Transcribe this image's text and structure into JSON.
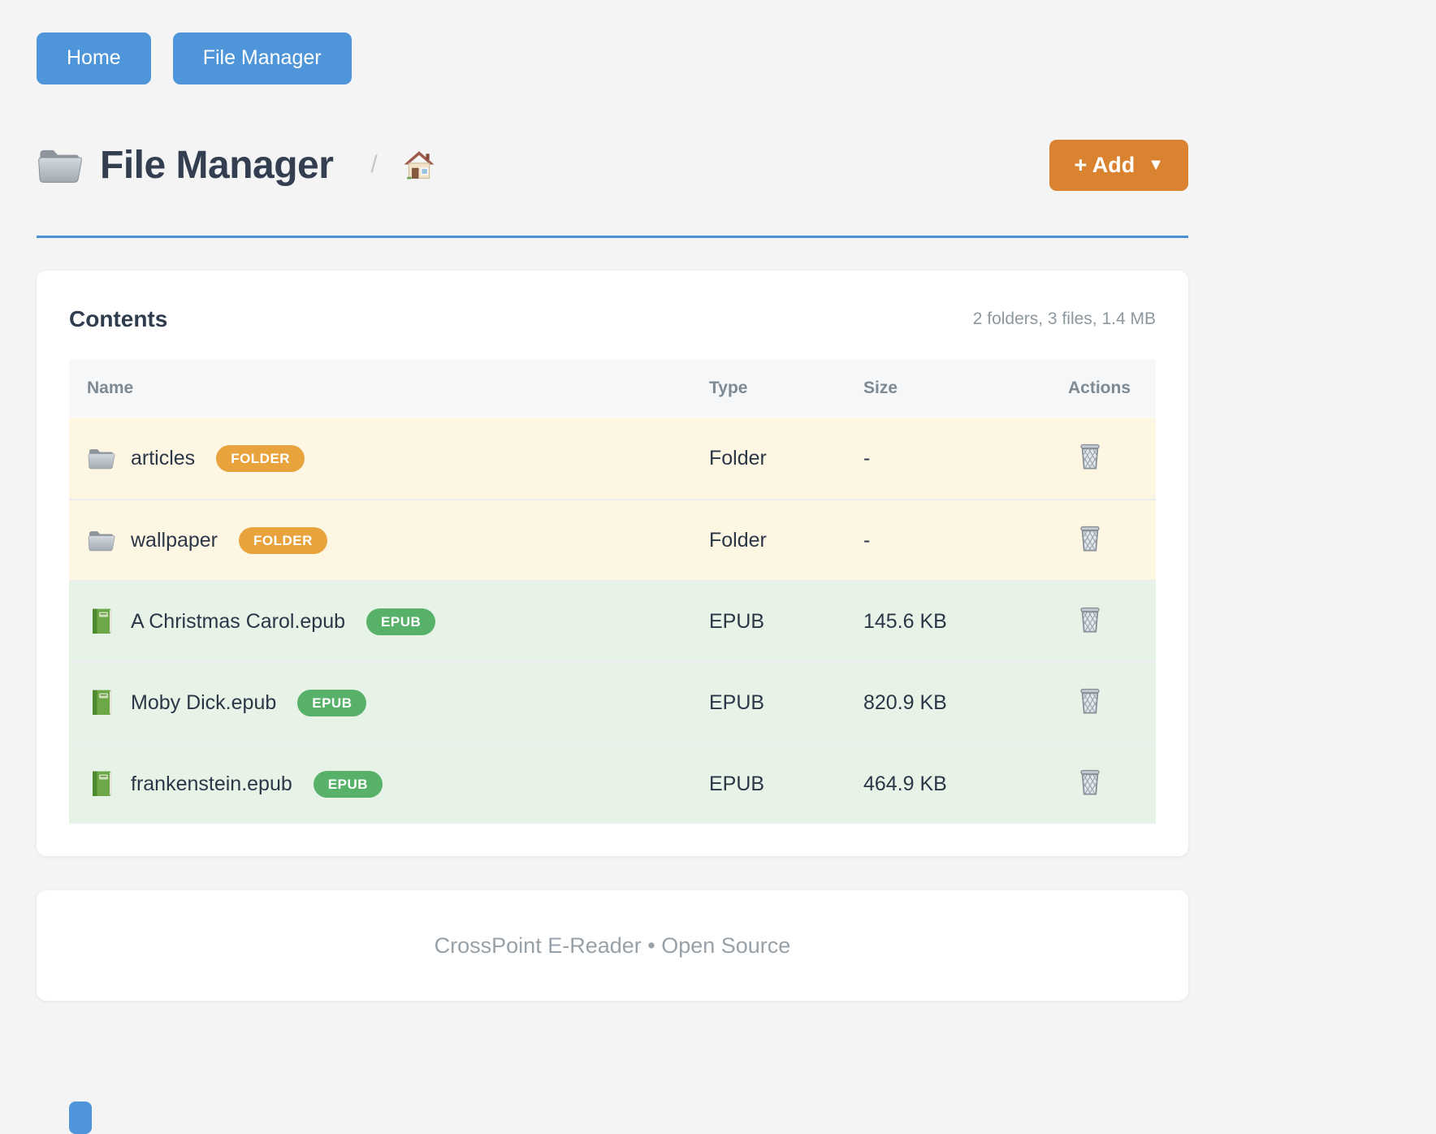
{
  "nav": {
    "buttons": [
      {
        "label": "Home"
      },
      {
        "label": "File Manager"
      }
    ]
  },
  "header": {
    "title": "File Manager",
    "breadcrumb_separator": "/",
    "add_button": {
      "label": "+ Add",
      "caret": "▼"
    }
  },
  "contents": {
    "heading": "Contents",
    "summary": "2 folders, 3 files, 1.4 MB",
    "columns": [
      "Name",
      "Type",
      "Size",
      "Actions"
    ],
    "rows": [
      {
        "name": "articles",
        "kind": "folder",
        "badge": "FOLDER",
        "type": "Folder",
        "size": "-"
      },
      {
        "name": "wallpaper",
        "kind": "folder",
        "badge": "FOLDER",
        "type": "Folder",
        "size": "-"
      },
      {
        "name": "A Christmas Carol.epub",
        "kind": "epub",
        "badge": "EPUB",
        "type": "EPUB",
        "size": "145.6 KB"
      },
      {
        "name": "Moby Dick.epub",
        "kind": "epub",
        "badge": "EPUB",
        "type": "EPUB",
        "size": "820.9 KB"
      },
      {
        "name": "frankenstein.epub",
        "kind": "epub",
        "badge": "EPUB",
        "type": "EPUB",
        "size": "464.9 KB"
      }
    ]
  },
  "footer": {
    "text": "CrossPoint E-Reader • Open Source"
  },
  "colors": {
    "primary_blue": "#4e95d9",
    "accent_orange": "#d9822f",
    "badge_folder": "#e8a33c",
    "badge_epub": "#57b169",
    "row_folder_bg": "#fdf6e3",
    "row_epub_bg": "#e8f3e8",
    "divider_blue": "#4a90d9"
  }
}
